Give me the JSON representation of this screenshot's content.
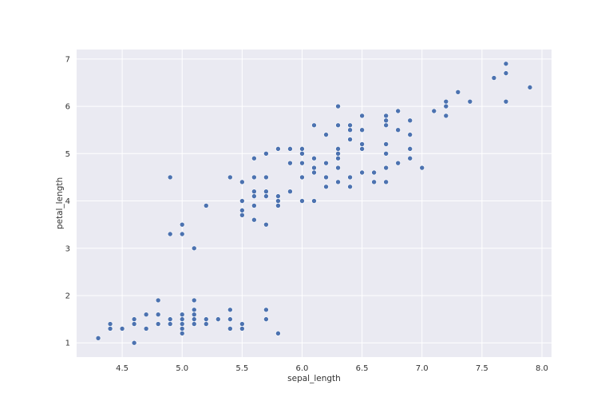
{
  "chart_data": {
    "type": "scatter",
    "title": "",
    "xlabel": "sepal_length",
    "ylabel": "petal_length",
    "xlim": [
      4.12,
      8.08
    ],
    "ylim": [
      0.7,
      7.2
    ],
    "xticks": [
      4.5,
      5.0,
      5.5,
      6.0,
      6.5,
      7.0,
      7.5,
      8.0
    ],
    "xtick_labels": [
      "4.5",
      "5.0",
      "5.5",
      "6.0",
      "6.5",
      "7.0",
      "7.5",
      "8.0"
    ],
    "yticks": [
      1,
      2,
      3,
      4,
      5,
      6,
      7
    ],
    "ytick_labels": [
      "1",
      "2",
      "3",
      "4",
      "5",
      "6",
      "7"
    ],
    "grid": true,
    "colors": {
      "background": "#eaeaf2",
      "grid": "#ffffff",
      "point": "#4c72b0"
    },
    "points": [
      [
        5.1,
        1.4
      ],
      [
        4.9,
        1.4
      ],
      [
        4.7,
        1.3
      ],
      [
        4.6,
        1.5
      ],
      [
        5.0,
        1.4
      ],
      [
        5.4,
        1.7
      ],
      [
        4.6,
        1.4
      ],
      [
        5.0,
        1.5
      ],
      [
        4.4,
        1.4
      ],
      [
        4.9,
        1.5
      ],
      [
        5.4,
        1.5
      ],
      [
        4.8,
        1.6
      ],
      [
        4.8,
        1.4
      ],
      [
        4.3,
        1.1
      ],
      [
        5.8,
        1.2
      ],
      [
        5.7,
        1.5
      ],
      [
        5.4,
        1.3
      ],
      [
        5.1,
        1.4
      ],
      [
        5.7,
        1.7
      ],
      [
        5.1,
        1.5
      ],
      [
        5.4,
        1.7
      ],
      [
        5.1,
        1.5
      ],
      [
        4.6,
        1.0
      ],
      [
        5.1,
        1.7
      ],
      [
        4.8,
        1.9
      ],
      [
        5.0,
        1.6
      ],
      [
        5.0,
        1.6
      ],
      [
        5.2,
        1.5
      ],
      [
        5.2,
        1.4
      ],
      [
        4.7,
        1.6
      ],
      [
        4.8,
        1.6
      ],
      [
        5.4,
        1.5
      ],
      [
        5.2,
        1.5
      ],
      [
        5.5,
        1.4
      ],
      [
        4.9,
        1.5
      ],
      [
        5.0,
        1.2
      ],
      [
        5.5,
        1.3
      ],
      [
        4.9,
        1.4
      ],
      [
        4.4,
        1.3
      ],
      [
        5.1,
        1.5
      ],
      [
        5.0,
        1.3
      ],
      [
        4.5,
        1.3
      ],
      [
        4.4,
        1.3
      ],
      [
        5.0,
        1.6
      ],
      [
        5.1,
        1.9
      ],
      [
        4.8,
        1.4
      ],
      [
        5.1,
        1.6
      ],
      [
        4.6,
        1.4
      ],
      [
        5.3,
        1.5
      ],
      [
        5.0,
        1.4
      ],
      [
        7.0,
        4.7
      ],
      [
        6.4,
        4.5
      ],
      [
        6.9,
        4.9
      ],
      [
        5.5,
        4.0
      ],
      [
        6.5,
        4.6
      ],
      [
        5.7,
        4.5
      ],
      [
        6.3,
        4.7
      ],
      [
        4.9,
        3.3
      ],
      [
        6.6,
        4.6
      ],
      [
        5.2,
        3.9
      ],
      [
        5.0,
        3.5
      ],
      [
        5.9,
        4.2
      ],
      [
        6.0,
        4.0
      ],
      [
        6.1,
        4.7
      ],
      [
        5.6,
        3.6
      ],
      [
        6.7,
        4.4
      ],
      [
        5.6,
        4.5
      ],
      [
        5.8,
        4.1
      ],
      [
        6.2,
        4.5
      ],
      [
        5.6,
        3.9
      ],
      [
        5.9,
        4.8
      ],
      [
        6.1,
        4.0
      ],
      [
        6.3,
        4.9
      ],
      [
        6.1,
        4.7
      ],
      [
        6.4,
        4.3
      ],
      [
        6.6,
        4.4
      ],
      [
        6.8,
        4.8
      ],
      [
        6.7,
        5.0
      ],
      [
        6.0,
        4.5
      ],
      [
        5.7,
        3.5
      ],
      [
        5.5,
        3.8
      ],
      [
        5.5,
        3.7
      ],
      [
        5.8,
        3.9
      ],
      [
        6.0,
        5.1
      ],
      [
        5.4,
        4.5
      ],
      [
        6.0,
        4.5
      ],
      [
        6.7,
        4.7
      ],
      [
        6.3,
        4.4
      ],
      [
        5.6,
        4.1
      ],
      [
        5.5,
        4.0
      ],
      [
        5.5,
        4.4
      ],
      [
        6.1,
        4.6
      ],
      [
        5.8,
        4.0
      ],
      [
        5.0,
        3.3
      ],
      [
        5.6,
        4.2
      ],
      [
        5.7,
        4.2
      ],
      [
        5.7,
        4.2
      ],
      [
        6.2,
        4.3
      ],
      [
        5.1,
        3.0
      ],
      [
        5.7,
        4.1
      ],
      [
        6.3,
        6.0
      ],
      [
        5.8,
        5.1
      ],
      [
        7.1,
        5.9
      ],
      [
        6.3,
        5.6
      ],
      [
        6.5,
        5.8
      ],
      [
        7.6,
        6.6
      ],
      [
        4.9,
        4.5
      ],
      [
        7.3,
        6.3
      ],
      [
        6.7,
        5.8
      ],
      [
        7.2,
        6.1
      ],
      [
        6.5,
        5.1
      ],
      [
        6.4,
        5.3
      ],
      [
        6.8,
        5.5
      ],
      [
        5.7,
        5.0
      ],
      [
        5.8,
        5.1
      ],
      [
        6.4,
        5.3
      ],
      [
        6.5,
        5.5
      ],
      [
        7.7,
        6.7
      ],
      [
        7.7,
        6.9
      ],
      [
        6.0,
        5.0
      ],
      [
        6.9,
        5.7
      ],
      [
        5.6,
        4.9
      ],
      [
        7.7,
        6.7
      ],
      [
        6.3,
        4.9
      ],
      [
        6.7,
        5.7
      ],
      [
        7.2,
        6.0
      ],
      [
        6.2,
        4.8
      ],
      [
        6.1,
        4.9
      ],
      [
        6.4,
        5.6
      ],
      [
        7.2,
        5.8
      ],
      [
        7.4,
        6.1
      ],
      [
        7.9,
        6.4
      ],
      [
        6.4,
        5.6
      ],
      [
        6.3,
        5.1
      ],
      [
        6.1,
        5.6
      ],
      [
        7.7,
        6.1
      ],
      [
        6.3,
        5.6
      ],
      [
        6.4,
        5.5
      ],
      [
        6.0,
        4.8
      ],
      [
        6.9,
        5.4
      ],
      [
        6.7,
        5.6
      ],
      [
        6.9,
        5.1
      ],
      [
        5.8,
        5.1
      ],
      [
        6.8,
        5.9
      ],
      [
        6.7,
        5.7
      ],
      [
        6.7,
        5.2
      ],
      [
        6.3,
        5.0
      ],
      [
        6.5,
        5.2
      ],
      [
        6.2,
        5.4
      ],
      [
        5.9,
        5.1
      ]
    ]
  }
}
